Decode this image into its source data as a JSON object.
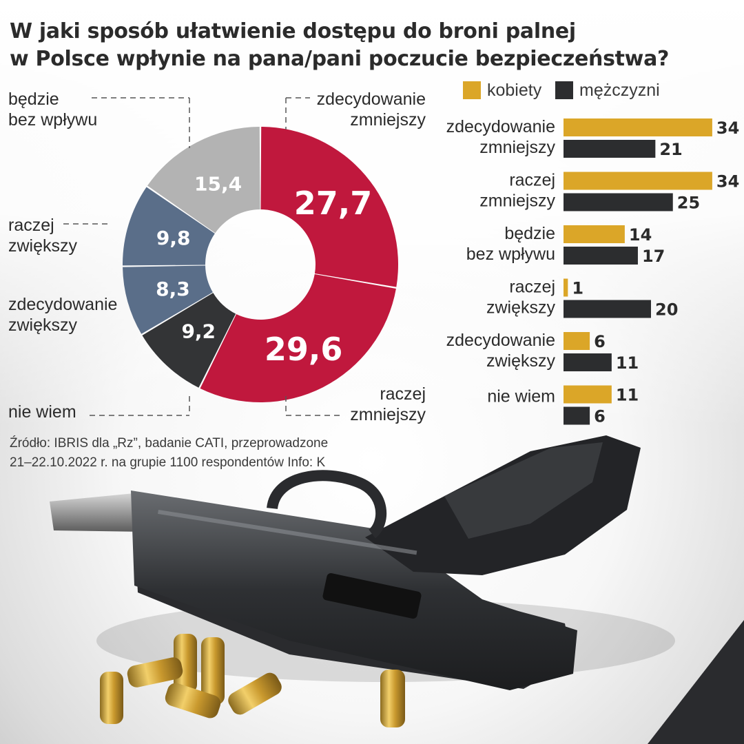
{
  "title_lines": [
    "W jaki sposób ułatwienie dostępu do broni palnej",
    "w Polsce wpłynie na pana/pani poczucie bezpieczeństwa?"
  ],
  "source_lines": [
    "Źródło: IBRIS dla „Rz”, badanie CATI, przeprowadzone",
    "21–22.10.2022 r. na grupie 1100 respondentów  Info: K"
  ],
  "colors": {
    "women": "#dba628",
    "men": "#2c2d2f",
    "decrease": "#c0183d",
    "increase": "#5a6e89",
    "no_effect": "#b3b3b3",
    "dont_know": "#333436"
  },
  "photo_elements": [
    "pistol",
    "bullets"
  ],
  "chart_data": [
    {
      "type": "pie",
      "variant": "donut",
      "slices": [
        {
          "label": "zdecydowanie zmniejszy",
          "label_lines": [
            "zdecydowanie",
            "zmniejszy"
          ],
          "value": 27.7,
          "value_label": "27,7",
          "color": "#c0183d"
        },
        {
          "label": "raczej zmniejszy",
          "label_lines": [
            "raczej",
            "zmniejszy"
          ],
          "value": 29.6,
          "value_label": "29,6",
          "color": "#c0183d"
        },
        {
          "label": "nie wiem",
          "label_lines": [
            "nie wiem"
          ],
          "value": 9.2,
          "value_label": "9,2",
          "color": "#333436"
        },
        {
          "label": "zdecydowanie zwiększy",
          "label_lines": [
            "zdecydowanie",
            "zwiększy"
          ],
          "value": 8.3,
          "value_label": "8,3",
          "color": "#5a6e89"
        },
        {
          "label": "raczej zwiększy",
          "label_lines": [
            "raczej",
            "zwiększy"
          ],
          "value": 9.8,
          "value_label": "9,8",
          "color": "#5a6e89"
        },
        {
          "label": "będzie bez wpływu",
          "label_lines": [
            "będzie",
            "bez wpływu"
          ],
          "value": 15.4,
          "value_label": "15,4",
          "color": "#b3b3b3"
        }
      ]
    },
    {
      "type": "bar",
      "orientation": "horizontal",
      "legend_placement": "top",
      "categories": [
        "zdecydowanie zmniejszy",
        "raczej zmniejszy",
        "będzie bez wpływu",
        "raczej zwiększy",
        "zdecydowanie zwiększy",
        "nie wiem"
      ],
      "category_lines": [
        [
          "zdecydowanie",
          "zmniejszy"
        ],
        [
          "raczej",
          "zmniejszy"
        ],
        [
          "będzie",
          "bez wpływu"
        ],
        [
          "raczej",
          "zwiększy"
        ],
        [
          "zdecydowanie",
          "zwiększy"
        ],
        [
          "nie wiem"
        ]
      ],
      "series": [
        {
          "name": "kobiety",
          "color": "#dba628",
          "values": [
            34,
            34,
            14,
            1,
            6,
            11
          ]
        },
        {
          "name": "mężczyzni",
          "color": "#2c2d2f",
          "values": [
            21,
            25,
            17,
            20,
            11,
            6
          ]
        }
      ]
    }
  ]
}
